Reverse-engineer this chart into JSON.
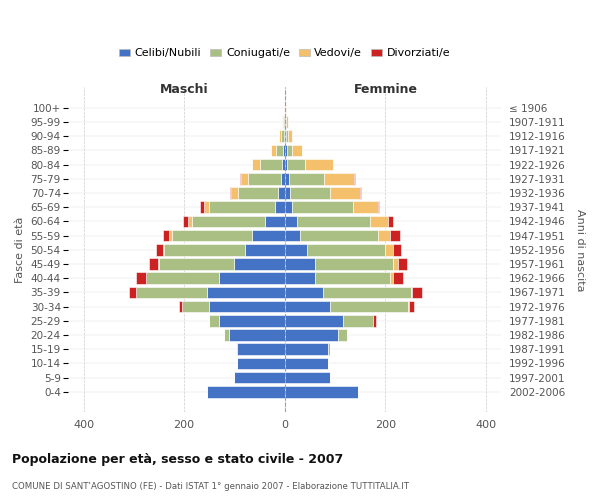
{
  "age_groups": [
    "0-4",
    "5-9",
    "10-14",
    "15-19",
    "20-24",
    "25-29",
    "30-34",
    "35-39",
    "40-44",
    "45-49",
    "50-54",
    "55-59",
    "60-64",
    "65-69",
    "70-74",
    "75-79",
    "80-84",
    "85-89",
    "90-94",
    "95-99",
    "100+"
  ],
  "birth_years": [
    "2002-2006",
    "1997-2001",
    "1992-1996",
    "1987-1991",
    "1982-1986",
    "1977-1981",
    "1972-1976",
    "1967-1971",
    "1962-1966",
    "1957-1961",
    "1952-1956",
    "1947-1951",
    "1942-1946",
    "1937-1941",
    "1932-1936",
    "1927-1931",
    "1922-1926",
    "1917-1921",
    "1912-1916",
    "1907-1911",
    "≤ 1906"
  ],
  "colors": {
    "celibe": "#4472C4",
    "coniugato": "#AABF84",
    "vedovo": "#F5C06B",
    "divorziato": "#CC2222"
  },
  "maschi": {
    "celibe": [
      155,
      100,
      95,
      95,
      110,
      130,
      150,
      155,
      130,
      100,
      80,
      65,
      40,
      20,
      14,
      8,
      5,
      3,
      1,
      1,
      1
    ],
    "coniugato": [
      0,
      0,
      0,
      2,
      10,
      20,
      55,
      140,
      145,
      150,
      160,
      160,
      145,
      130,
      80,
      65,
      45,
      15,
      6,
      2,
      0
    ],
    "vedovo": [
      0,
      0,
      0,
      0,
      0,
      0,
      0,
      0,
      1,
      2,
      3,
      5,
      8,
      10,
      12,
      15,
      15,
      10,
      5,
      2,
      0
    ],
    "divorziato": [
      0,
      0,
      0,
      0,
      0,
      0,
      5,
      15,
      20,
      18,
      12,
      12,
      10,
      8,
      2,
      2,
      1,
      0,
      0,
      0,
      0
    ]
  },
  "femmine": {
    "nubile": [
      145,
      90,
      85,
      85,
      105,
      115,
      90,
      75,
      60,
      60,
      45,
      30,
      25,
      15,
      10,
      8,
      5,
      4,
      2,
      2,
      1
    ],
    "coniugata": [
      0,
      0,
      0,
      5,
      18,
      60,
      155,
      175,
      150,
      155,
      155,
      155,
      145,
      120,
      80,
      70,
      35,
      10,
      5,
      1,
      0
    ],
    "vedova": [
      0,
      0,
      0,
      0,
      0,
      1,
      1,
      2,
      5,
      10,
      15,
      25,
      35,
      50,
      60,
      60,
      55,
      20,
      8,
      3,
      1
    ],
    "divorziata": [
      0,
      0,
      0,
      0,
      1,
      5,
      10,
      20,
      20,
      18,
      15,
      18,
      10,
      2,
      2,
      2,
      1,
      0,
      0,
      0,
      0
    ]
  },
  "title": "Popolazione per età, sesso e stato civile - 2007",
  "subtitle": "COMUNE DI SANT'AGOSTINO (FE) - Dati ISTAT 1° gennaio 2007 - Elaborazione TUTTITALIA.IT",
  "maschi_label": "Maschi",
  "femmine_label": "Femmine",
  "ylabel_left": "Fasce di età",
  "ylabel_right": "Anni di nascita",
  "xlim": [
    -430,
    430
  ],
  "xticks": [
    -400,
    -200,
    0,
    200,
    400
  ],
  "xticklabels": [
    "400",
    "200",
    "0",
    "200",
    "400"
  ],
  "background": "#FFFFFF",
  "legend_labels": [
    "Celibi/Nubili",
    "Coniugati/e",
    "Vedovi/e",
    "Divorziati/e"
  ]
}
